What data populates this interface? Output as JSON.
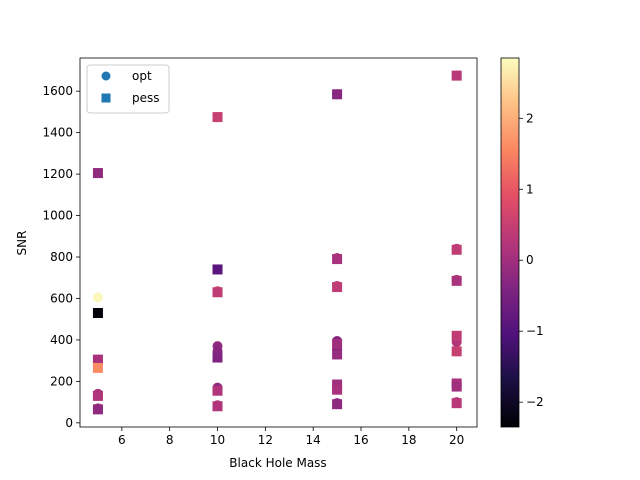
{
  "chart_data": {
    "type": "scatter",
    "title": "",
    "xlabel": "Black Hole Mass",
    "ylabel": "SNR",
    "xlim": [
      4.25,
      20.85
    ],
    "ylim": [
      -20,
      1760
    ],
    "xticks": [
      6,
      8,
      10,
      12,
      14,
      16,
      18,
      20
    ],
    "yticks": [
      0,
      200,
      400,
      600,
      800,
      1000,
      1200,
      1400,
      1600
    ],
    "grid": false,
    "legend": {
      "placement": "top-left",
      "entries": [
        {
          "label": "opt",
          "marker": "circle",
          "color": "#1f77b4"
        },
        {
          "label": "pess",
          "marker": "square",
          "color": "#1f77b4"
        }
      ]
    },
    "colorbar": {
      "colormap": "magma",
      "range": [
        -2.35,
        2.85
      ],
      "ticks": [
        -2,
        -1,
        0,
        1,
        2
      ],
      "tick_labels": [
        "−2",
        "−1",
        "0",
        "1",
        "2"
      ]
    },
    "series": [
      {
        "name": "opt",
        "marker": "circle",
        "points": [
          {
            "x": 5,
            "y": 605,
            "c": 2.8
          },
          {
            "x": 5,
            "y": 290,
            "c": 0.0
          },
          {
            "x": 5,
            "y": 140,
            "c": 0.1
          },
          {
            "x": 5,
            "y": 70,
            "c": 0.0
          },
          {
            "x": 10,
            "y": 1475,
            "c": 0.5
          },
          {
            "x": 10,
            "y": 740,
            "c": -0.9
          },
          {
            "x": 10,
            "y": 635,
            "c": 0.5
          },
          {
            "x": 10,
            "y": 370,
            "c": -0.2
          },
          {
            "x": 10,
            "y": 345,
            "c": -0.3
          },
          {
            "x": 10,
            "y": 170,
            "c": -0.2
          },
          {
            "x": 10,
            "y": 85,
            "c": 0.2
          },
          {
            "x": 15,
            "y": 1585,
            "c": -0.5
          },
          {
            "x": 15,
            "y": 795,
            "c": 0.3
          },
          {
            "x": 15,
            "y": 660,
            "c": 0.3
          },
          {
            "x": 15,
            "y": 395,
            "c": -0.3
          },
          {
            "x": 15,
            "y": 355,
            "c": -0.7
          },
          {
            "x": 15,
            "y": 180,
            "c": -0.8
          },
          {
            "x": 15,
            "y": 160,
            "c": -0.4
          },
          {
            "x": 15,
            "y": 95,
            "c": -0.3
          },
          {
            "x": 20,
            "y": 1675,
            "c": 0.3
          },
          {
            "x": 20,
            "y": 840,
            "c": 0.4
          },
          {
            "x": 20,
            "y": 690,
            "c": 0.3
          },
          {
            "x": 20,
            "y": 390,
            "c": 0.2
          },
          {
            "x": 20,
            "y": 185,
            "c": -0.2
          },
          {
            "x": 20,
            "y": 100,
            "c": 0.2
          }
        ]
      },
      {
        "name": "pess",
        "marker": "square",
        "points": [
          {
            "x": 5,
            "y": 1205,
            "c": -0.2
          },
          {
            "x": 5,
            "y": 530,
            "c": -2.3
          },
          {
            "x": 5,
            "y": 305,
            "c": 0.1
          },
          {
            "x": 5,
            "y": 265,
            "c": 1.6
          },
          {
            "x": 5,
            "y": 130,
            "c": 0.2
          },
          {
            "x": 5,
            "y": 65,
            "c": -0.2
          },
          {
            "x": 10,
            "y": 1475,
            "c": 0.5
          },
          {
            "x": 10,
            "y": 740,
            "c": -0.9
          },
          {
            "x": 10,
            "y": 630,
            "c": 0.4
          },
          {
            "x": 10,
            "y": 315,
            "c": -0.4
          },
          {
            "x": 10,
            "y": 155,
            "c": 0.2
          },
          {
            "x": 10,
            "y": 80,
            "c": 0.2
          },
          {
            "x": 15,
            "y": 1585,
            "c": -0.3
          },
          {
            "x": 15,
            "y": 790,
            "c": 0.1
          },
          {
            "x": 15,
            "y": 655,
            "c": 0.4
          },
          {
            "x": 15,
            "y": 380,
            "c": 0.0
          },
          {
            "x": 15,
            "y": 330,
            "c": -0.1
          },
          {
            "x": 15,
            "y": 185,
            "c": 0.0
          },
          {
            "x": 15,
            "y": 160,
            "c": 0.1
          },
          {
            "x": 15,
            "y": 90,
            "c": -0.2
          },
          {
            "x": 20,
            "y": 1675,
            "c": 0.3
          },
          {
            "x": 20,
            "y": 835,
            "c": 0.4
          },
          {
            "x": 20,
            "y": 685,
            "c": 0.1
          },
          {
            "x": 20,
            "y": 420,
            "c": 0.4
          },
          {
            "x": 20,
            "y": 345,
            "c": 0.5
          },
          {
            "x": 20,
            "y": 190,
            "c": 0.1
          },
          {
            "x": 20,
            "y": 175,
            "c": 0.0
          },
          {
            "x": 20,
            "y": 95,
            "c": 0.3
          }
        ]
      }
    ]
  }
}
